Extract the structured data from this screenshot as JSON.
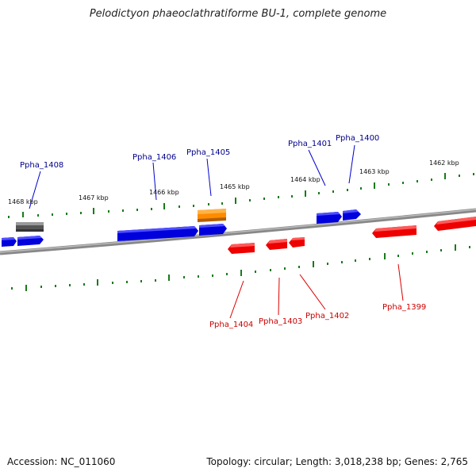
{
  "title": "Pelodictyon phaeoclathratiforme BU-1, complete genome",
  "footer": {
    "accession": "Accession: NC_011060",
    "summary": "Topology: circular; Length: 3,018,238 bp; Genes: 2,765"
  },
  "colors": {
    "forward_gene": "#0000ee",
    "reverse_gene": "#ee0000",
    "highlight_gene": "#ff8c00",
    "other_feature": "#666666",
    "backbone": "#888888",
    "tick": "#1a7a1a",
    "forward_label": "#00008b",
    "reverse_label": "#cc0000"
  },
  "scale_labels": [
    "1468 kbp",
    "1467 kbp",
    "1466 kbp",
    "1465 kbp",
    "1464 kbp",
    "1463 kbp",
    "1462 kbp"
  ],
  "gene_labels": {
    "forward": [
      "Ppha_1408",
      "Ppha_1406",
      "Ppha_1405",
      "Ppha_1401",
      "Ppha_1400"
    ],
    "reverse": [
      "Ppha_1404",
      "Ppha_1403",
      "Ppha_1402",
      "Ppha_1399"
    ]
  }
}
